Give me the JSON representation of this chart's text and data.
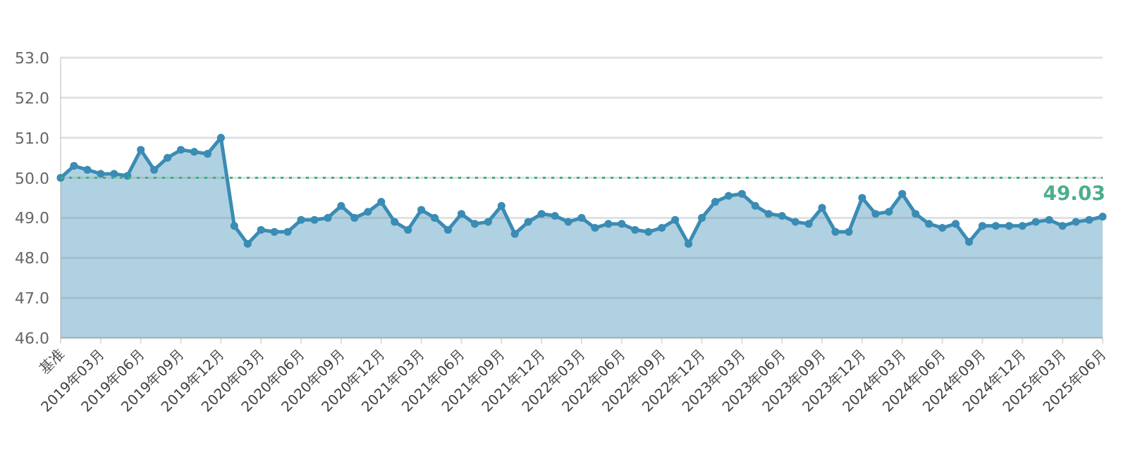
{
  "chart_data": {
    "type": "area",
    "categories": [
      "基准",
      null,
      null,
      "2019年03月",
      null,
      null,
      "2019年06月",
      null,
      null,
      "2019年09月",
      null,
      null,
      "2019年12月",
      null,
      null,
      "2020年03月",
      null,
      null,
      "2020年06月",
      null,
      null,
      "2020年09月",
      null,
      null,
      "2020年12月",
      null,
      null,
      "2021年03月",
      null,
      null,
      "2021年06月",
      null,
      null,
      "2021年09月",
      null,
      null,
      "2021年12月",
      null,
      null,
      "2022年03月",
      null,
      null,
      "2022年06月",
      null,
      null,
      "2022年09月",
      null,
      null,
      "2022年12月",
      null,
      null,
      "2023年03月",
      null,
      null,
      "2023年06月",
      null,
      null,
      "2023年09月",
      null,
      null,
      "2023年12月",
      null,
      null,
      "2024年03月",
      null,
      null,
      "2024年06月",
      null,
      null,
      "2024年09月",
      null,
      null,
      "2024年12月",
      null,
      null,
      "2025年03月",
      null,
      null,
      "2025年06月"
    ],
    "series": [
      {
        "color": "#3a8cb4",
        "values": [
          50.0,
          50.3,
          50.2,
          50.1,
          50.1,
          50.05,
          50.7,
          50.2,
          50.5,
          50.7,
          50.65,
          50.6,
          51.0,
          48.8,
          48.35,
          48.7,
          48.65,
          48.65,
          48.95,
          48.95,
          49.0,
          49.3,
          49.0,
          49.15,
          49.4,
          48.9,
          48.7,
          49.2,
          49.0,
          48.7,
          49.1,
          48.85,
          48.9,
          49.3,
          48.6,
          48.9,
          49.1,
          49.05,
          48.9,
          49.0,
          48.75,
          48.85,
          48.85,
          48.7,
          48.65,
          48.75,
          48.95,
          48.35,
          49.0,
          49.4,
          49.55,
          49.6,
          49.3,
          49.1,
          49.05,
          48.9,
          48.85,
          49.25,
          48.65,
          48.65,
          49.5,
          49.1,
          49.15,
          49.6,
          49.1,
          48.85,
          48.75,
          48.85,
          48.4,
          48.8,
          48.8,
          48.8,
          48.8,
          48.9,
          48.95,
          48.8,
          48.9,
          48.95,
          49.03
        ],
        "value_labels": [
          null,
          null,
          null,
          null,
          null,
          null,
          null,
          null,
          null,
          null,
          null,
          null,
          null,
          null,
          null,
          null,
          null,
          null,
          null,
          null,
          null,
          null,
          null,
          null,
          null,
          null,
          null,
          null,
          null,
          null,
          null,
          null,
          null,
          null,
          null,
          null,
          null,
          null,
          null,
          null,
          null,
          null,
          null,
          null,
          null,
          null,
          null,
          null,
          null,
          null,
          null,
          null,
          null,
          null,
          null,
          null,
          null,
          null,
          null,
          null,
          null,
          null,
          null,
          null,
          null,
          null,
          null,
          null,
          null,
          null,
          null,
          null,
          null,
          null,
          null,
          null,
          null,
          null,
          "49.03"
        ]
      }
    ],
    "ylim": [
      46,
      53
    ],
    "yticks": [
      {
        "value": 46,
        "label": "46.0"
      },
      {
        "value": 47,
        "label": "47.0"
      },
      {
        "value": 48,
        "label": "48.0"
      },
      {
        "value": 49,
        "label": "49.0"
      },
      {
        "value": 50,
        "label": "50.0"
      },
      {
        "value": 51,
        "label": "51.0"
      },
      {
        "value": 52,
        "label": "52.0"
      },
      {
        "value": 53,
        "label": "53.0"
      }
    ],
    "ref_lines": [
      {
        "axis": "y",
        "value": 50,
        "color": "#3cb371",
        "line_style": "dotted"
      }
    ],
    "grid": "y",
    "marker": "circle"
  }
}
